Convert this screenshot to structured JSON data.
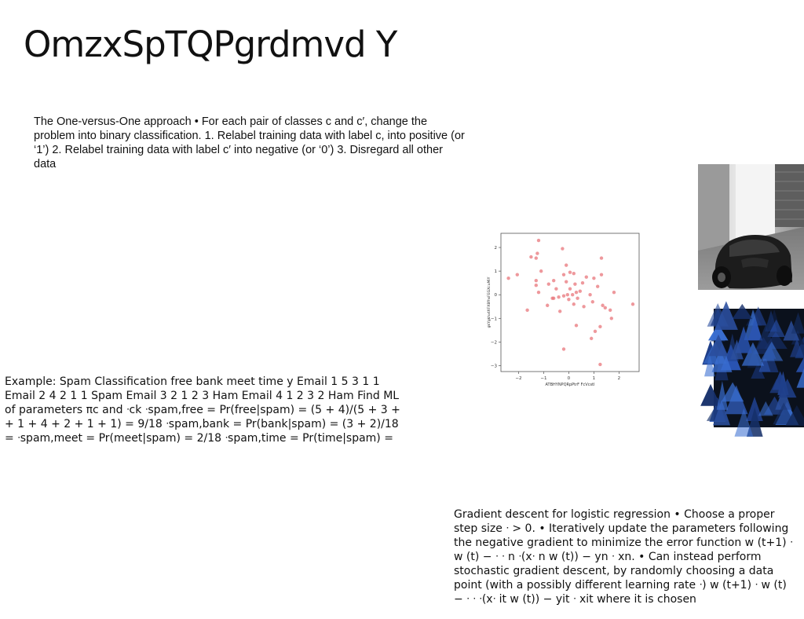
{
  "slide": {
    "title": "OmzxSpTQPgrdmvd Y"
  },
  "blocks": {
    "ovo": "The One-versus-One approach • For each pair of classes c and c′, change the problem into binary classification. 1. Relabel training data with label c, into positive (or ‘1’) 2. Relabel training data with label c′ into negative (or ‘0’) 3. Disregard all other data",
    "spam": "Example: Spam Classification free bank meet time y Email 1 5 3 1 1 Email 2 4 2 1 1 Spam Email 3 2 1 2 3 Ham Email 4 1 2 3 2 Ham Find ML of parameters πc and ᐧck ᐧspam,free = Pr(free|spam) = (5 + 4)/(5 + 3 + + 1 + 4 + 2 + 1 + 1) = 9/18 ᐧspam,bank = Pr(bank|spam) = (3 + 2)/18 = ᐧspam,meet = Pr(meet|spam) = 2/18 ᐧspam,time = Pr(time|spam) =",
    "gd": "Gradient descent for logistic regression • Choose a proper step size ᐧ > 0. • Iteratively update the parameters following the negative gradient to minimize the error function w (t+1) ᐧ w (t) − ᐧ ᐧ n ᐧ(xᐧ n w (t)) − yn ᐧ xn. • Can instead perform stochastic gradient descent, by randomly choosing a data point (with a possibly different learning rate ᐧ) w (t+1) ᐧ w (t) − ᐧ ᐧ ᐧ(xᐧ it w (t)) − yit ᐧ xit where it is chosen"
  },
  "chart_data": {
    "type": "scatter",
    "title": "",
    "xlabel": "ATBHYNPQRpPtrF FcVcstI",
    "ylabel": "gkYgkhxtXFXBfhsFEGXcuMiY",
    "xlim": [
      -2.7,
      2.8
    ],
    "ylim": [
      -3.25,
      2.6
    ],
    "xticks": [
      -2,
      -1,
      0,
      1,
      2
    ],
    "yticks": [
      2,
      1,
      0,
      -1,
      -2,
      -3
    ],
    "grid": false,
    "color": "#e8757b",
    "points": [
      {
        "x": -1.2,
        "y": 2.3
      },
      {
        "x": -0.25,
        "y": 1.95
      },
      {
        "x": -1.25,
        "y": 1.75
      },
      {
        "x": -1.5,
        "y": 1.6
      },
      {
        "x": -1.3,
        "y": 1.55
      },
      {
        "x": 1.3,
        "y": 1.55
      },
      {
        "x": -0.1,
        "y": 1.25
      },
      {
        "x": -1.1,
        "y": 1.0
      },
      {
        "x": -2.05,
        "y": 0.85
      },
      {
        "x": -2.4,
        "y": 0.7
      },
      {
        "x": 0.05,
        "y": 0.95
      },
      {
        "x": 0.2,
        "y": 0.9
      },
      {
        "x": -0.2,
        "y": 0.85
      },
      {
        "x": 1.3,
        "y": 0.85
      },
      {
        "x": 0.7,
        "y": 0.75
      },
      {
        "x": 1.0,
        "y": 0.7
      },
      {
        "x": -1.3,
        "y": 0.6
      },
      {
        "x": -0.6,
        "y": 0.6
      },
      {
        "x": -0.1,
        "y": 0.55
      },
      {
        "x": 0.55,
        "y": 0.5
      },
      {
        "x": 0.25,
        "y": 0.45
      },
      {
        "x": -1.3,
        "y": 0.4
      },
      {
        "x": -0.8,
        "y": 0.45
      },
      {
        "x": 1.15,
        "y": 0.35
      },
      {
        "x": -0.5,
        "y": 0.25
      },
      {
        "x": 0.05,
        "y": 0.25
      },
      {
        "x": 0.45,
        "y": 0.15
      },
      {
        "x": 0.3,
        "y": 0.1
      },
      {
        "x": -1.2,
        "y": 0.1
      },
      {
        "x": -0.05,
        "y": 0.0
      },
      {
        "x": 0.15,
        "y": 0.0
      },
      {
        "x": 0.85,
        "y": 0.0
      },
      {
        "x": -0.2,
        "y": -0.05
      },
      {
        "x": 1.8,
        "y": 0.1
      },
      {
        "x": -0.4,
        "y": -0.1
      },
      {
        "x": -0.6,
        "y": -0.15
      },
      {
        "x": -0.65,
        "y": -0.15
      },
      {
        "x": 0.35,
        "y": -0.15
      },
      {
        "x": 0.0,
        "y": -0.2
      },
      {
        "x": 0.95,
        "y": -0.3
      },
      {
        "x": -0.85,
        "y": -0.45
      },
      {
        "x": 0.2,
        "y": -0.4
      },
      {
        "x": 1.35,
        "y": -0.45
      },
      {
        "x": 0.6,
        "y": -0.5
      },
      {
        "x": 1.45,
        "y": -0.55
      },
      {
        "x": 2.55,
        "y": -0.4
      },
      {
        "x": 1.65,
        "y": -0.65
      },
      {
        "x": -1.65,
        "y": -0.65
      },
      {
        "x": -0.35,
        "y": -0.7
      },
      {
        "x": 1.7,
        "y": -1.0
      },
      {
        "x": 1.25,
        "y": -1.35
      },
      {
        "x": 0.3,
        "y": -1.3
      },
      {
        "x": 1.05,
        "y": -1.55
      },
      {
        "x": 0.9,
        "y": -1.85
      },
      {
        "x": -0.2,
        "y": -2.3
      },
      {
        "x": 1.25,
        "y": -2.95
      }
    ]
  },
  "images": {
    "car_photo": "black sports car in a garage (grayscale photo)",
    "forest_photo": "dark forest with blue-tinted trees"
  }
}
